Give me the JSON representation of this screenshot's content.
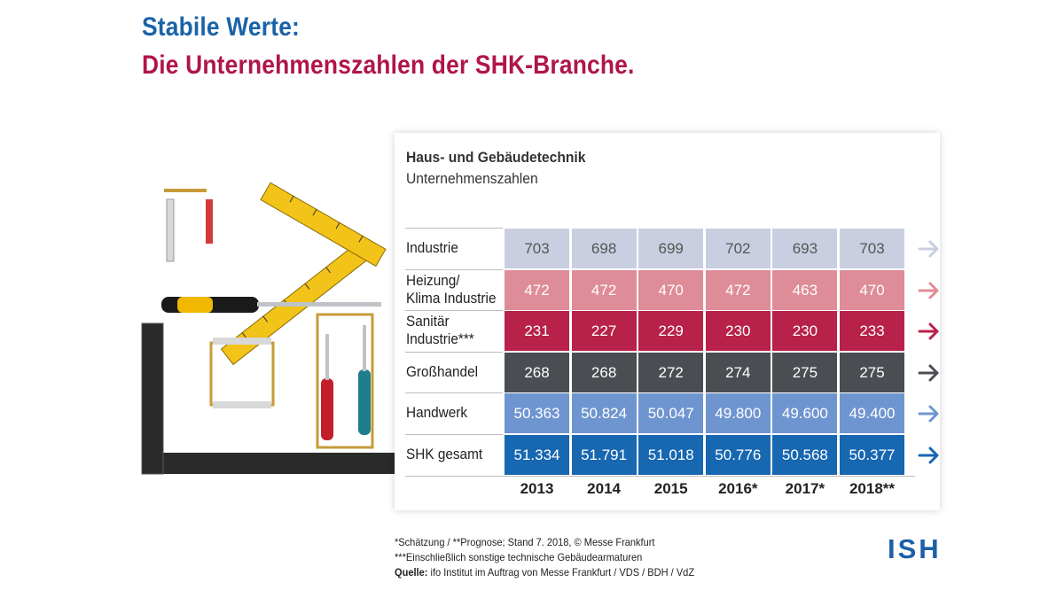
{
  "heading": {
    "line1": "Stabile Werte:",
    "line2": "Die Unternehmenszahlen der SHK-Branche."
  },
  "chart_data": {
    "type": "table",
    "title": "Haus- und Gebäudetechnik",
    "subtitle": "Unternehmenszahlen",
    "columns": [
      "2013",
      "2014",
      "2015",
      "2016*",
      "2017*",
      "2018**"
    ],
    "rows": [
      {
        "label": [
          "Industrie"
        ],
        "values": [
          "703",
          "698",
          "699",
          "702",
          "693",
          "703"
        ],
        "color": "#c9cfe1",
        "text_color": "#555555",
        "arrow_color": "#c9cfe1"
      },
      {
        "label": [
          "Heizung/",
          "Klima Industrie"
        ],
        "values": [
          "472",
          "472",
          "470",
          "472",
          "463",
          "470"
        ],
        "color": "#de8c97",
        "text_color": "#ffffff",
        "arrow_color": "#e08c97"
      },
      {
        "label": [
          "Sanitär",
          "Industrie***"
        ],
        "values": [
          "231",
          "227",
          "229",
          "230",
          "230",
          "233"
        ],
        "color": "#b82149",
        "text_color": "#ffffff",
        "arrow_color": "#b82149"
      },
      {
        "label": [
          "Großhandel"
        ],
        "values": [
          "268",
          "268",
          "272",
          "274",
          "275",
          "275"
        ],
        "color": "#4a4d52",
        "text_color": "#ffffff",
        "arrow_color": "#4a4d52"
      },
      {
        "label": [
          "Handwerk"
        ],
        "values": [
          "50.363",
          "50.824",
          "50.047",
          "49.800",
          "49.600",
          "49.400"
        ],
        "color": "#6f95d0",
        "text_color": "#ffffff",
        "arrow_color": "#6f95d0"
      },
      {
        "label": [
          "SHK gesamt"
        ],
        "values": [
          "51.334",
          "51.791",
          "51.018",
          "50.776",
          "50.568",
          "50.377"
        ],
        "color": "#1767b1",
        "text_color": "#ffffff",
        "arrow_color": "#1767b1"
      }
    ]
  },
  "footnotes": {
    "line1": "*Schätzung / **Prognose; Stand 7. 2018, © Messe Frankfurt",
    "line2": "***Einschließlich sonstige technische Gebäudearmaturen",
    "line3_bold": "Quelle:",
    "line3": " ifo Institut im Auftrag von Messe Frankfurt / VDS / BDH / VdZ"
  },
  "logo": "ISH",
  "colors": {
    "heading_blue": "#1a63a8",
    "heading_red": "#b0154a",
    "logo_blue": "#1d5fa8"
  }
}
